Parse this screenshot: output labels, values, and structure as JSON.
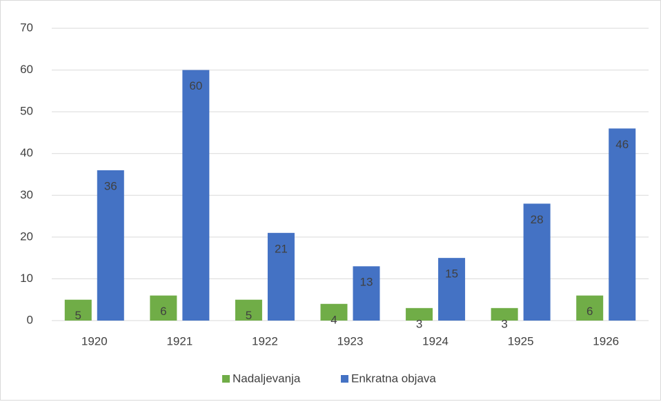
{
  "chart_data": {
    "type": "bar",
    "categories": [
      "1920",
      "1921",
      "1922",
      "1923",
      "1924",
      "1925",
      "1926"
    ],
    "series": [
      {
        "name": "Nadaljevanja",
        "color": "#70ad47",
        "values": [
          5,
          6,
          5,
          4,
          3,
          3,
          6
        ]
      },
      {
        "name": "Enkratna objava",
        "color": "#4472c4",
        "values": [
          36,
          60,
          21,
          13,
          15,
          28,
          46
        ]
      }
    ],
    "ylim": [
      0,
      70
    ],
    "yticks": [
      0,
      10,
      20,
      30,
      40,
      50,
      60,
      70
    ],
    "grid": true,
    "legend": "bottom"
  }
}
